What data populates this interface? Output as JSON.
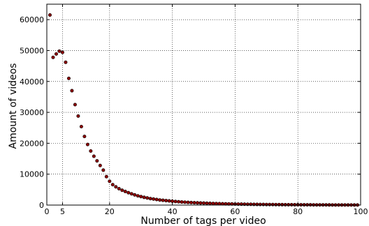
{
  "chart_data": {
    "type": "scatter",
    "title": "",
    "xlabel": "Number of tags per video",
    "ylabel": "Amount of videos",
    "xlim": [
      0,
      100
    ],
    "ylim": [
      0,
      65000
    ],
    "x_ticks": [
      0,
      5,
      20,
      40,
      60,
      80,
      100
    ],
    "y_ticks": [
      0,
      10000,
      20000,
      30000,
      40000,
      50000,
      60000
    ],
    "x_tick_labels": [
      "0",
      "5",
      "20",
      "40",
      "60",
      "80",
      "100"
    ],
    "y_tick_labels": [
      "0",
      "10000",
      "20000",
      "30000",
      "40000",
      "50000",
      "60000"
    ],
    "grid": true,
    "marker_color": "#8b0000",
    "marker_edge_color": "#000000",
    "series": [
      {
        "x": [
          1,
          2,
          3,
          4,
          5,
          6,
          7,
          8,
          9,
          10,
          11,
          12,
          13,
          14,
          15,
          16,
          17,
          18,
          19,
          20,
          21,
          22,
          23,
          24,
          25,
          26,
          27,
          28,
          29,
          30,
          31,
          32,
          33,
          34,
          35,
          36,
          37,
          38,
          39,
          40,
          41,
          42,
          43,
          44,
          45,
          46,
          47,
          48,
          49,
          50,
          51,
          52,
          53,
          54,
          55,
          56,
          57,
          58,
          59,
          60,
          61,
          62,
          63,
          64,
          65,
          66,
          67,
          68,
          69,
          70,
          71,
          72,
          73,
          74,
          75,
          76,
          77,
          78,
          79,
          80,
          81,
          82,
          83,
          84,
          85,
          86,
          87,
          88,
          89,
          90,
          91,
          92,
          93,
          94,
          95,
          96,
          97,
          98,
          99
        ],
        "y": [
          61500,
          47800,
          48900,
          49800,
          49400,
          46200,
          41000,
          37000,
          32500,
          28800,
          25400,
          22200,
          19600,
          17500,
          15800,
          14300,
          12800,
          11300,
          9200,
          7700,
          6600,
          5900,
          5300,
          4800,
          4400,
          4000,
          3650,
          3300,
          3000,
          2750,
          2500,
          2300,
          2100,
          1950,
          1800,
          1650,
          1550,
          1450,
          1350,
          1250,
          1150,
          1080,
          1000,
          940,
          880,
          820,
          770,
          720,
          680,
          640,
          600,
          560,
          520,
          490,
          460,
          430,
          400,
          380,
          360,
          340,
          320,
          300,
          280,
          260,
          245,
          230,
          215,
          200,
          190,
          180,
          170,
          160,
          150,
          140,
          130,
          120,
          110,
          105,
          100,
          95,
          90,
          85,
          80,
          75,
          70,
          65,
          60,
          55,
          50,
          45,
          40,
          38,
          36,
          34,
          32,
          30,
          28,
          26,
          24
        ]
      }
    ]
  }
}
